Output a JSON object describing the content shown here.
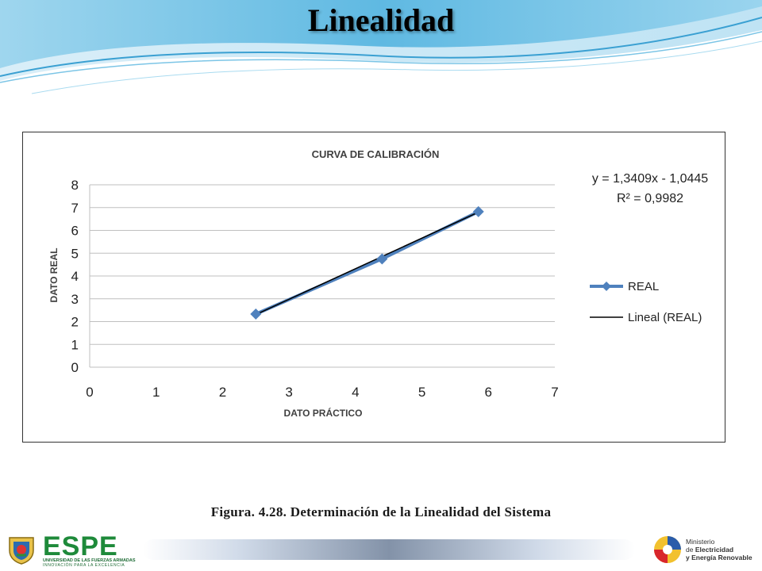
{
  "slide": {
    "title": "Linealidad",
    "caption": "Figura. 4.28. Determinación  de la Linealidad del Sistema"
  },
  "footer": {
    "espe_logo": {
      "word": "ESPE",
      "line1": "UNIVERSIDAD DE LAS FUERZAS ARMADAS",
      "line2": "INNOVACIÓN PARA LA EXCELENCIA"
    },
    "ministry_logo": {
      "line1": "Ministerio",
      "line2_pre": "de ",
      "line2_bold": "Electricidad",
      "line3": "y Energía Renovable"
    }
  },
  "colors": {
    "series_real": "#4F81BD",
    "trendline": "#000000",
    "grid": "#BFBFBF",
    "header_blue": "#5BB8E0"
  },
  "chart_data": {
    "type": "line",
    "title": "CURVA DE CALIBRACIÓN",
    "xlabel": "DATO PRÁCTICO",
    "ylabel": "DATO REAL",
    "xlim": [
      0,
      7
    ],
    "ylim": [
      0,
      8
    ],
    "x_ticks": [
      "0",
      "1",
      "2",
      "3",
      "4",
      "5",
      "6",
      "7"
    ],
    "y_ticks": [
      "0",
      "1",
      "2",
      "3",
      "4",
      "5",
      "6",
      "7",
      "8"
    ],
    "grid": "horizontal",
    "legend_position": "right",
    "series": [
      {
        "name": "REAL",
        "marker": "diamond",
        "x": [
          2.5,
          4.4,
          5.85
        ],
        "y": [
          2.33,
          4.75,
          6.82
        ]
      }
    ],
    "trendline": {
      "name": "Lineal (REAL)",
      "slope": 1.3409,
      "intercept": -1.0445,
      "x_range": [
        2.5,
        5.85
      ]
    },
    "annotation": {
      "equation": "y = 1,3409x - 1,0445",
      "r_squared": "R² = 0,9982"
    }
  }
}
